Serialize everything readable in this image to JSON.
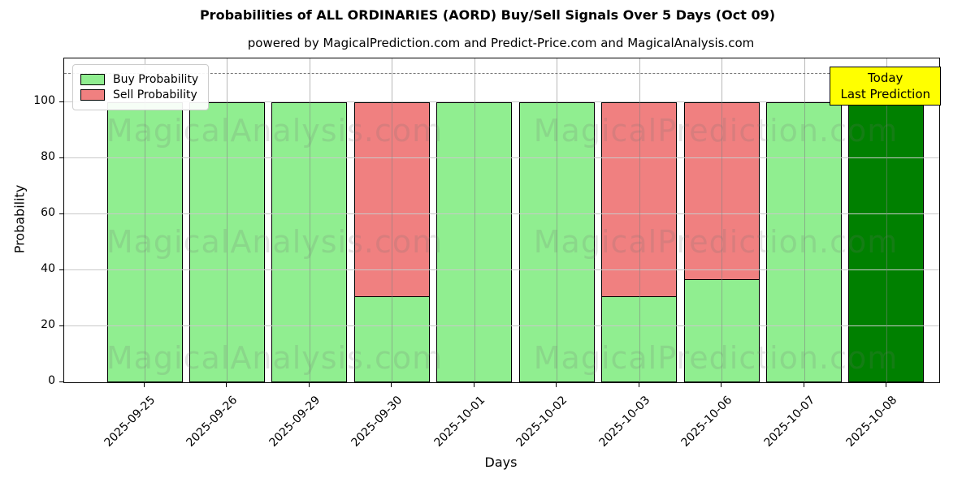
{
  "title": "Probabilities of ALL ORDINARIES (AORD) Buy/Sell Signals Over 5 Days (Oct 09)",
  "subtitle": "powered by MagicalPrediction.com and Predict-Price.com and MagicalAnalysis.com",
  "chart_data": {
    "type": "bar",
    "stacked": true,
    "title": "Probabilities of ALL ORDINARIES (AORD) Buy/Sell Signals Over 5 Days (Oct 09)",
    "subtitle": "powered by MagicalPrediction.com and Predict-Price.com and MagicalAnalysis.com",
    "xlabel": "Days",
    "ylabel": "Probability",
    "categories": [
      "2025-09-25",
      "2025-09-26",
      "2025-09-29",
      "2025-09-30",
      "2025-10-01",
      "2025-10-02",
      "2025-10-03",
      "2025-10-06",
      "2025-10-07",
      "2025-10-08"
    ],
    "series": [
      {
        "name": "Buy Probability",
        "color": "#90EE90",
        "values": [
          100,
          100,
          100,
          31,
          100,
          100,
          31,
          37,
          100,
          100
        ]
      },
      {
        "name": "Sell Probability",
        "color": "#F08080",
        "values": [
          0,
          0,
          0,
          69,
          0,
          0,
          69,
          63,
          0,
          0
        ]
      }
    ],
    "today_index": 9,
    "today_color": "#008000",
    "yticks": [
      0,
      20,
      40,
      60,
      80,
      100
    ],
    "ylim": [
      0,
      115.6
    ],
    "dashed_line_y": 110,
    "grid": true,
    "legend_position": "upper left"
  },
  "legend": {
    "items": [
      {
        "label": "Buy Probability",
        "color": "#90EE90"
      },
      {
        "label": "Sell Probability",
        "color": "#F08080"
      }
    ]
  },
  "annotation": {
    "line1": "Today",
    "line2": "Last Prediction",
    "bg_color": "#ffff00"
  },
  "watermarks": [
    "MagicalAnalysis.com",
    "MagicalPrediction.com"
  ],
  "axis": {
    "xlabel": "Days",
    "ylabel": "Probability"
  }
}
